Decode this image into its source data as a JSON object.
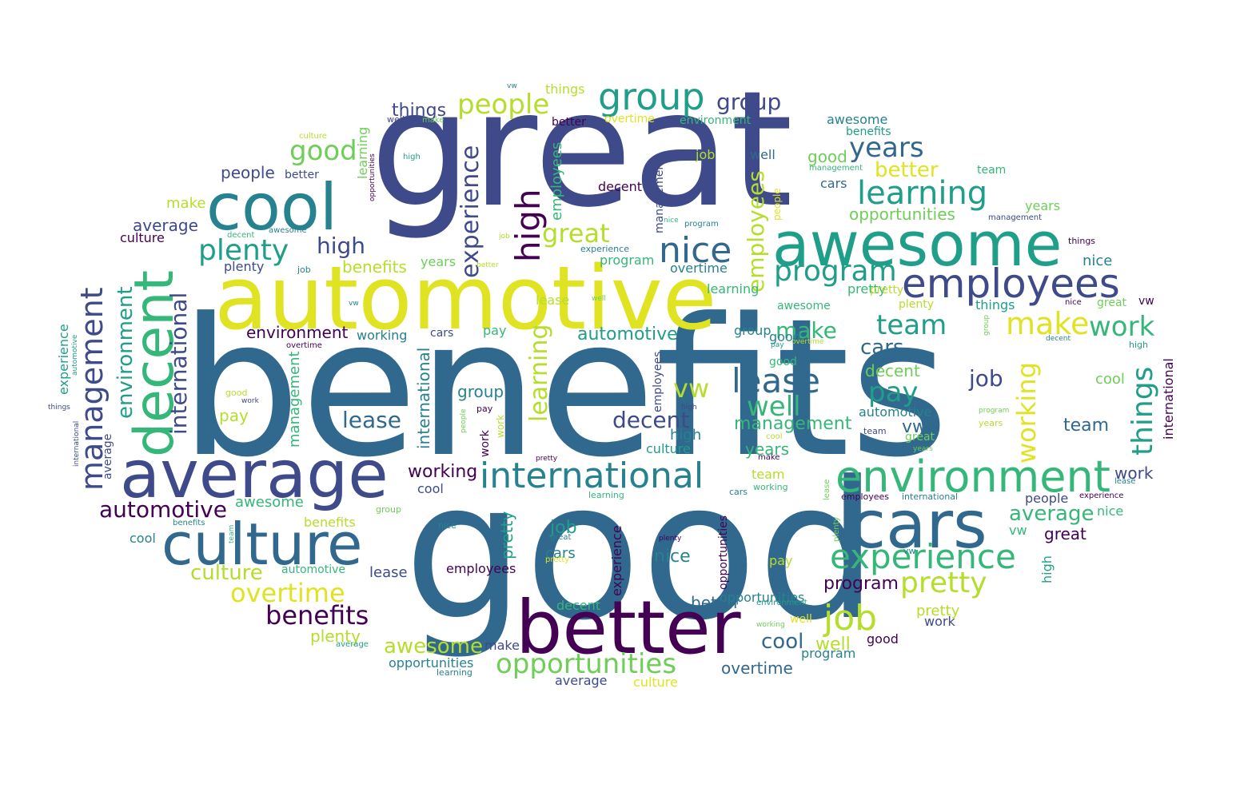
{
  "palette": {
    "dark_purple": "#440154",
    "indigo": "#3e4a89",
    "blue": "#31688e",
    "teal": "#26828e",
    "aqua": "#1f9e89",
    "green": "#35b779",
    "light_green": "#6ece58",
    "lime": "#b5de2b",
    "yellow": "#e0e321"
  },
  "words": [
    {
      "id": "benefits-main",
      "text": "benefits"
    },
    {
      "id": "good-main",
      "text": "good"
    },
    {
      "id": "great-main",
      "text": "great"
    },
    {
      "id": "automotive-main",
      "text": "automotive"
    },
    {
      "id": "awesome-main",
      "text": "awesome"
    },
    {
      "id": "better-main",
      "text": "better"
    },
    {
      "id": "average-main",
      "text": "average"
    },
    {
      "id": "cars-main",
      "text": "cars"
    },
    {
      "id": "culture-main",
      "text": "culture"
    },
    {
      "id": "cool-main",
      "text": "cool"
    },
    {
      "id": "decent-main",
      "text": "decent"
    },
    {
      "id": "environment-main",
      "text": "environment"
    },
    {
      "id": "employees-main",
      "text": "employees"
    },
    {
      "id": "international-main",
      "text": "international"
    },
    {
      "id": "experience-main",
      "text": "experience"
    },
    {
      "id": "opportunities-main",
      "text": "opportunities"
    },
    {
      "id": "management-main",
      "text": "management"
    },
    {
      "id": "group-main",
      "text": "group"
    },
    {
      "id": "learning-main",
      "text": "learning"
    },
    {
      "id": "people-main",
      "text": "people"
    },
    {
      "id": "high-main",
      "text": "high"
    },
    {
      "id": "nice-main",
      "text": "nice"
    },
    {
      "id": "plenty-main",
      "text": "plenty"
    },
    {
      "id": "program-main",
      "text": "program"
    },
    {
      "id": "lease-main",
      "text": "lease"
    },
    {
      "id": "job-main",
      "text": "job"
    },
    {
      "id": "team-main",
      "text": "team"
    },
    {
      "id": "pretty-main",
      "text": "pretty"
    },
    {
      "id": "make-main",
      "text": "make"
    },
    {
      "id": "work-main",
      "text": "work"
    },
    {
      "id": "overtime-main",
      "text": "overtime"
    },
    {
      "id": "benefits-2",
      "text": "benefits"
    },
    {
      "id": "things-main",
      "text": "things"
    },
    {
      "id": "working-main",
      "text": "working"
    },
    {
      "id": "years-main",
      "text": "years"
    },
    {
      "id": "well-main",
      "text": "well"
    },
    {
      "id": "pay-main",
      "text": "pay"
    },
    {
      "id": "vw-main",
      "text": "vw"
    },
    {
      "id": "good-2",
      "text": "good"
    },
    {
      "id": "great-2",
      "text": "great"
    },
    {
      "id": "automotive-2",
      "text": "automotive"
    },
    {
      "id": "awesome-2",
      "text": "awesome"
    },
    {
      "id": "opportunities-2",
      "text": "opportunities"
    },
    {
      "id": "better-2",
      "text": "better"
    },
    {
      "id": "culture-2",
      "text": "culture"
    },
    {
      "id": "environment-2",
      "text": "environment"
    },
    {
      "id": "average-2",
      "text": "average"
    },
    {
      "id": "plenty-2",
      "text": "plenty"
    },
    {
      "id": "group-2",
      "text": "group"
    },
    {
      "id": "experience-2",
      "text": "experience"
    },
    {
      "id": "employees-2",
      "text": "employees"
    },
    {
      "id": "learning-2",
      "text": "learning"
    },
    {
      "id": "high-2",
      "text": "high"
    },
    {
      "id": "decent-2",
      "text": "decent"
    },
    {
      "id": "decent-3",
      "text": "decent"
    },
    {
      "id": "lease-2",
      "text": "lease"
    },
    {
      "id": "management-2",
      "text": "management"
    },
    {
      "id": "international-2",
      "text": "international"
    },
    {
      "id": "automotive-3",
      "text": "automotive"
    },
    {
      "id": "cars-2",
      "text": "cars"
    },
    {
      "id": "make-2",
      "text": "make"
    },
    {
      "id": "work-2",
      "text": "work"
    },
    {
      "id": "pay-2",
      "text": "pay"
    },
    {
      "id": "job-2",
      "text": "job"
    },
    {
      "id": "years-2",
      "text": "years"
    },
    {
      "id": "well-2",
      "text": "well"
    },
    {
      "id": "vw-2",
      "text": "vw"
    },
    {
      "id": "working-2",
      "text": "working"
    },
    {
      "id": "things-2",
      "text": "things"
    },
    {
      "id": "team-2",
      "text": "team"
    },
    {
      "id": "cool-2",
      "text": "cool"
    },
    {
      "id": "nice-2",
      "text": "nice"
    },
    {
      "id": "pretty-2",
      "text": "pretty"
    },
    {
      "id": "program-2",
      "text": "program"
    },
    {
      "id": "people-2",
      "text": "people"
    },
    {
      "id": "overtime-2",
      "text": "overtime"
    },
    {
      "id": "job-3",
      "text": "job"
    },
    {
      "id": "benefits-3",
      "text": "benefits"
    },
    {
      "id": "awesome-3",
      "text": "awesome"
    },
    {
      "id": "culture-3",
      "text": "culture"
    },
    {
      "id": "make-3",
      "text": "make"
    },
    {
      "id": "average-3",
      "text": "average"
    },
    {
      "id": "things-3",
      "text": "things"
    },
    {
      "id": "people-3",
      "text": "people"
    },
    {
      "id": "better-3",
      "text": "better"
    },
    {
      "id": "group-3",
      "text": "group"
    },
    {
      "id": "years-3",
      "text": "years"
    },
    {
      "id": "opportunities-3",
      "text": "opportunities"
    },
    {
      "id": "environment-3",
      "text": "environment"
    },
    {
      "id": "working-3",
      "text": "working"
    },
    {
      "id": "good-3",
      "text": "good"
    },
    {
      "id": "good-4",
      "text": "good"
    },
    {
      "id": "well-3",
      "text": "well"
    },
    {
      "id": "cars-3",
      "text": "cars"
    },
    {
      "id": "team-3",
      "text": "team"
    },
    {
      "id": "nice-3",
      "text": "nice"
    },
    {
      "id": "plenty-3",
      "text": "plenty"
    },
    {
      "id": "high-3",
      "text": "high"
    },
    {
      "id": "experience-3",
      "text": "experience"
    },
    {
      "id": "overtime-3",
      "text": "overtime"
    },
    {
      "id": "program-3",
      "text": "program"
    },
    {
      "id": "learning-3",
      "text": "learning"
    },
    {
      "id": "pretty-3",
      "text": "pretty"
    },
    {
      "id": "lease-3",
      "text": "lease"
    },
    {
      "id": "pay-3",
      "text": "pay"
    },
    {
      "id": "group-4",
      "text": "group"
    },
    {
      "id": "decent-4",
      "text": "decent"
    },
    {
      "id": "employees-3",
      "text": "employees"
    },
    {
      "id": "international-3",
      "text": "international"
    },
    {
      "id": "automotive-4",
      "text": "automotive"
    },
    {
      "id": "vw-3",
      "text": "vw"
    },
    {
      "id": "great-3",
      "text": "great"
    },
    {
      "id": "work-3",
      "text": "work"
    },
    {
      "id": "cool-3",
      "text": "cool"
    },
    {
      "id": "culture-4",
      "text": "culture"
    },
    {
      "id": "management-3",
      "text": "management"
    },
    {
      "id": "nice-4",
      "text": "nice"
    },
    {
      "id": "high-4",
      "text": "high"
    },
    {
      "id": "years-4",
      "text": "years"
    },
    {
      "id": "job-4",
      "text": "job"
    },
    {
      "id": "cars-4",
      "text": "cars"
    },
    {
      "id": "pretty-4",
      "text": "pretty"
    },
    {
      "id": "pay-4",
      "text": "pay"
    },
    {
      "id": "benefits-4",
      "text": "benefits"
    },
    {
      "id": "awesome-4",
      "text": "awesome"
    },
    {
      "id": "cool-4",
      "text": "cool"
    },
    {
      "id": "lease-4",
      "text": "lease"
    },
    {
      "id": "employees-4",
      "text": "employees"
    },
    {
      "id": "better-4",
      "text": "better"
    },
    {
      "id": "decent-5",
      "text": "decent"
    },
    {
      "id": "experience-4",
      "text": "experience"
    },
    {
      "id": "program-4",
      "text": "program"
    },
    {
      "id": "good-5",
      "text": "good"
    },
    {
      "id": "make-4",
      "text": "make"
    },
    {
      "id": "overtime-4",
      "text": "overtime"
    },
    {
      "id": "average-4",
      "text": "average"
    },
    {
      "id": "culture-5",
      "text": "culture"
    },
    {
      "id": "learning-4",
      "text": "learning"
    },
    {
      "id": "opportunities-4",
      "text": "opportunities"
    },
    {
      "id": "plenty-4",
      "text": "plenty"
    },
    {
      "id": "average-5",
      "text": "average"
    },
    {
      "id": "well-4",
      "text": "well"
    },
    {
      "id": "work-4",
      "text": "work"
    },
    {
      "id": "pretty-5",
      "text": "pretty"
    },
    {
      "id": "great-4",
      "text": "great"
    },
    {
      "id": "vw-4",
      "text": "vw"
    },
    {
      "id": "team-4",
      "text": "team"
    },
    {
      "id": "nice-5",
      "text": "nice"
    },
    {
      "id": "experience-5",
      "text": "experience"
    },
    {
      "id": "lease-5",
      "text": "lease"
    },
    {
      "id": "work-5",
      "text": "work"
    },
    {
      "id": "international-4",
      "text": "international"
    },
    {
      "id": "high-5",
      "text": "high"
    },
    {
      "id": "things-4",
      "text": "things"
    },
    {
      "id": "nice-6",
      "text": "nice"
    },
    {
      "id": "great-5",
      "text": "great"
    },
    {
      "id": "vw-5",
      "text": "vw"
    },
    {
      "id": "years-5",
      "text": "years"
    },
    {
      "id": "management-4",
      "text": "management"
    },
    {
      "id": "things-5",
      "text": "things"
    },
    {
      "id": "cars-5",
      "text": "cars"
    },
    {
      "id": "team-5",
      "text": "team"
    },
    {
      "id": "benefits-5",
      "text": "benefits"
    },
    {
      "id": "environment-4",
      "text": "environment"
    },
    {
      "id": "well-5",
      "text": "well"
    },
    {
      "id": "good-6",
      "text": "good"
    },
    {
      "id": "management-5",
      "text": "management"
    },
    {
      "id": "people-4",
      "text": "people"
    },
    {
      "id": "program-5",
      "text": "program"
    },
    {
      "id": "job-5",
      "text": "job"
    },
    {
      "id": "better-5",
      "text": "better"
    },
    {
      "id": "experience-6",
      "text": "experience"
    },
    {
      "id": "overtime-5",
      "text": "overtime"
    },
    {
      "id": "learning-5",
      "text": "learning"
    },
    {
      "id": "automotive-5",
      "text": "automotive"
    },
    {
      "id": "employees-5",
      "text": "employees"
    },
    {
      "id": "group-5",
      "text": "group"
    },
    {
      "id": "pay-5",
      "text": "pay"
    },
    {
      "id": "overtime-6",
      "text": "overtime"
    },
    {
      "id": "lease-6",
      "text": "lease"
    },
    {
      "id": "well-6",
      "text": "well"
    },
    {
      "id": "vw-6",
      "text": "vw"
    },
    {
      "id": "pretty-6",
      "text": "pretty"
    },
    {
      "id": "awesome-5",
      "text": "awesome"
    },
    {
      "id": "working-4",
      "text": "working"
    },
    {
      "id": "cool-5",
      "text": "cool"
    },
    {
      "id": "decent-6",
      "text": "decent"
    },
    {
      "id": "make-5",
      "text": "make"
    },
    {
      "id": "people-5",
      "text": "people"
    },
    {
      "id": "years-6",
      "text": "years"
    },
    {
      "id": "program-6",
      "text": "program"
    },
    {
      "id": "high-6",
      "text": "high"
    },
    {
      "id": "group-6",
      "text": "group"
    },
    {
      "id": "job-6",
      "text": "job"
    },
    {
      "id": "better-6",
      "text": "better"
    },
    {
      "id": "team-6",
      "text": "team"
    },
    {
      "id": "plenty-5",
      "text": "plenty"
    },
    {
      "id": "great-6",
      "text": "great"
    },
    {
      "id": "pretty-7",
      "text": "pretty"
    },
    {
      "id": "working-5",
      "text": "working"
    },
    {
      "id": "cars-6",
      "text": "cars"
    },
    {
      "id": "learning-6",
      "text": "learning"
    },
    {
      "id": "benefits-6",
      "text": "benefits"
    },
    {
      "id": "employees-6",
      "text": "employees"
    },
    {
      "id": "international-5",
      "text": "international"
    },
    {
      "id": "opportunities-5",
      "text": "opportunities"
    },
    {
      "id": "environment-5",
      "text": "environment"
    },
    {
      "id": "nice-7",
      "text": "nice"
    },
    {
      "id": "plenty-6",
      "text": "plenty"
    },
    {
      "id": "average-6",
      "text": "average"
    },
    {
      "id": "pay-6",
      "text": "pay"
    },
    {
      "id": "work-6",
      "text": "work"
    },
    {
      "id": "good-7",
      "text": "good"
    },
    {
      "id": "culture-6",
      "text": "culture"
    },
    {
      "id": "decent-7",
      "text": "decent"
    },
    {
      "id": "awesome-6",
      "text": "awesome"
    },
    {
      "id": "high-7",
      "text": "high"
    },
    {
      "id": "things-6",
      "text": "things"
    },
    {
      "id": "automotive-6",
      "text": "automotive"
    },
    {
      "id": "international-6",
      "text": "international"
    },
    {
      "id": "experience-7",
      "text": "experience"
    },
    {
      "id": "opportunities-6",
      "text": "opportunities"
    },
    {
      "id": "job-7",
      "text": "job"
    },
    {
      "id": "people-6",
      "text": "people"
    },
    {
      "id": "well-7",
      "text": "well"
    },
    {
      "id": "vw-7",
      "text": "vw"
    },
    {
      "id": "make-6",
      "text": "make"
    },
    {
      "id": "overtime-7",
      "text": "overtime"
    },
    {
      "id": "lease-7",
      "text": "lease"
    },
    {
      "id": "management-6",
      "text": "management"
    },
    {
      "id": "benefits-7",
      "text": "benefits"
    },
    {
      "id": "program-7",
      "text": "program"
    },
    {
      "id": "better-7",
      "text": "better"
    },
    {
      "id": "group-7",
      "text": "group"
    },
    {
      "id": "years-7",
      "text": "years"
    },
    {
      "id": "work-7",
      "text": "work"
    },
    {
      "id": "good-8",
      "text": "good"
    },
    {
      "id": "team-7",
      "text": "team"
    },
    {
      "id": "average-7",
      "text": "average"
    },
    {
      "id": "learning-7",
      "text": "learning"
    },
    {
      "id": "pay-7",
      "text": "pay"
    },
    {
      "id": "pretty-8",
      "text": "pretty"
    },
    {
      "id": "culture-7",
      "text": "culture"
    },
    {
      "id": "cool-6",
      "text": "cool"
    },
    {
      "id": "employees-7",
      "text": "employees"
    },
    {
      "id": "great-7",
      "text": "great"
    },
    {
      "id": "plenty-7",
      "text": "plenty"
    }
  ]
}
